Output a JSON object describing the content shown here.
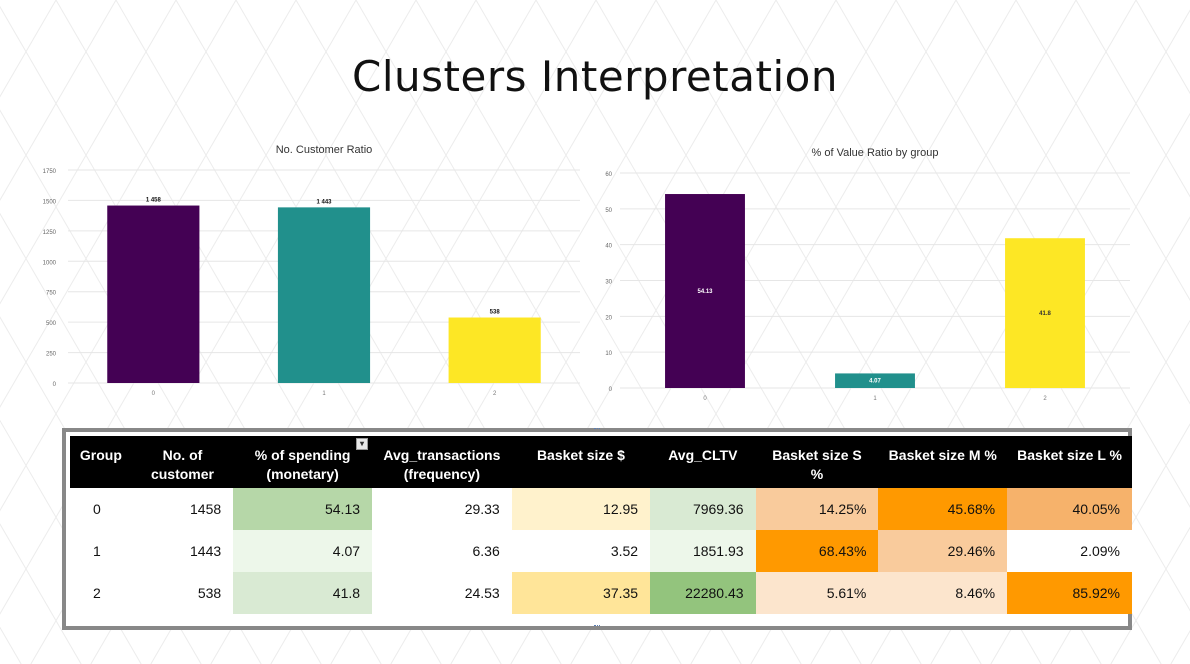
{
  "title": "Clusters Interpretation",
  "chart_data": [
    {
      "type": "bar",
      "title": "No. Customer Ratio",
      "categories": [
        "0",
        "1",
        "2"
      ],
      "values": [
        1458,
        1443,
        538
      ],
      "data_labels": [
        "1 458",
        "1 443",
        "538"
      ],
      "colors": [
        "#440154",
        "#21908c",
        "#fde725"
      ],
      "ylim": [
        0,
        1750
      ],
      "yticks": [
        "0",
        "250",
        "500",
        "750",
        "1000",
        "1250",
        "1500",
        "1750"
      ],
      "grid": true,
      "xlabel": "",
      "ylabel": ""
    },
    {
      "type": "bar",
      "title": "% of Value Ratio by group",
      "categories": [
        "0",
        "1",
        "2"
      ],
      "values": [
        54.13,
        4.07,
        41.8
      ],
      "data_labels": [
        "54.13",
        "4.07",
        "41.8"
      ],
      "colors": [
        "#440154",
        "#21908c",
        "#fde725"
      ],
      "ylim": [
        0,
        60
      ],
      "yticks": [
        "0",
        "10",
        "20",
        "30",
        "40",
        "50",
        "60"
      ],
      "grid": true,
      "xlabel": "",
      "ylabel": ""
    }
  ],
  "table": {
    "headers": [
      [
        "Group"
      ],
      [
        "No. of",
        "customer"
      ],
      [
        "% of spending",
        "(monetary)"
      ],
      [
        "Avg_transactions",
        "(frequency)"
      ],
      [
        "Basket size $"
      ],
      [
        "Avg_CLTV"
      ],
      [
        "Basket size S",
        "%"
      ],
      [
        "Basket size M %"
      ],
      [
        "Basket size L %"
      ]
    ],
    "rows": [
      [
        "0",
        "1458",
        "54.13",
        "29.33",
        "12.95",
        "7969.36",
        "14.25%",
        "45.68%",
        "40.05%"
      ],
      [
        "1",
        "1443",
        "4.07",
        "6.36",
        "3.52",
        "1851.93",
        "68.43%",
        "29.46%",
        "2.09%"
      ],
      [
        "2",
        "538",
        "41.8",
        "24.53",
        "37.35",
        "22280.43",
        "5.61%",
        "8.46%",
        "85.92%"
      ]
    ],
    "cell_colors": [
      [
        "#ffffff",
        "#ffffff",
        "#b6d7a8",
        "#ffffff",
        "#fff2cc",
        "#d9ead3",
        "#f9cb9c",
        "#ff9900",
        "#f6b26b"
      ],
      [
        "#ffffff",
        "#ffffff",
        "#edf7ea",
        "#ffffff",
        "#ffffff",
        "#edf7ea",
        "#ff9900",
        "#f9cb9c",
        "#ffffff"
      ],
      [
        "#ffffff",
        "#ffffff",
        "#d9ead3",
        "#ffffff",
        "#ffe599",
        "#93c47d",
        "#fce5cd",
        "#fce5cd",
        "#ff9900"
      ]
    ]
  }
}
